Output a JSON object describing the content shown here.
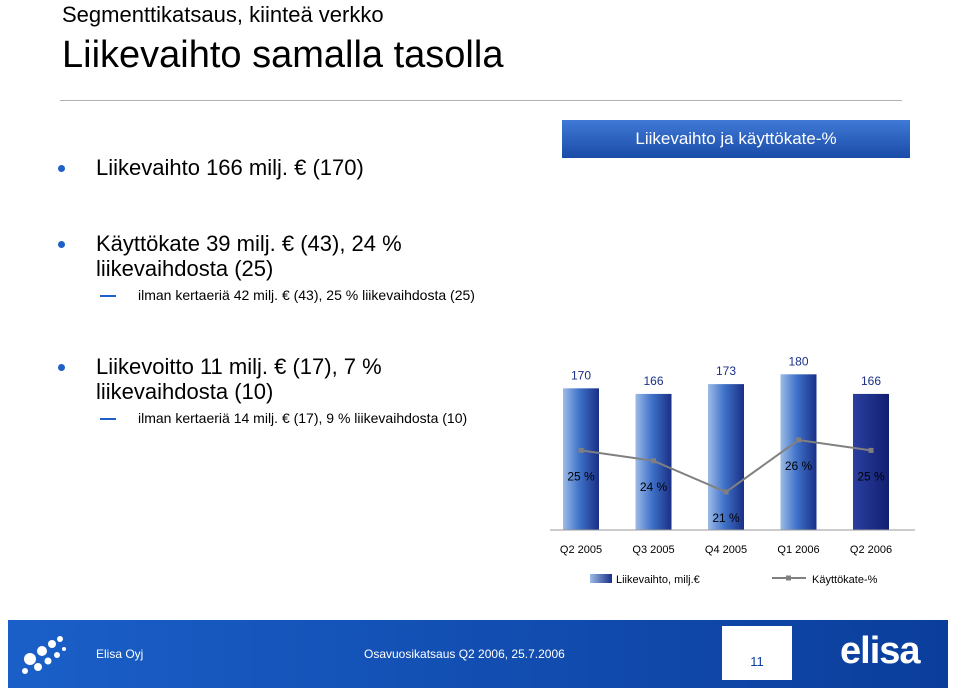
{
  "slide": {
    "subtitle": "Segmenttikatsaus, kiinteä verkko",
    "title": "Liikevaihto samalla tasolla"
  },
  "bullets": [
    {
      "lines": [
        "Liikevaihto 166 milj. € (170)"
      ]
    },
    {
      "lines": [
        "Käyttökate 39 milj. € (43), 24 %",
        "liikevaihdosta (25)"
      ],
      "sub": "ilman kertaeriä 42 milj. € (43), 25 % liikevaihdosta (25)"
    },
    {
      "lines": [
        "Liikevoitto 11 milj. € (17), 7 %",
        "liikevaihdosta (10)"
      ],
      "sub": "ilman kertaeriä 14 milj. € (17), 9 % liikevaihdosta (10)"
    }
  ],
  "chart_header": "Liikevaihto ja käyttökate-%",
  "chart_data": {
    "type": "bar",
    "categories": [
      "Q2 2005",
      "Q3 2005",
      "Q4 2005",
      "Q1 2006",
      "Q2 2006"
    ],
    "series": [
      {
        "name": "Liikevaihto, milj.€",
        "type": "bar",
        "values": [
          170,
          166,
          173,
          180,
          166
        ],
        "labels": [
          "170",
          "166",
          "173",
          "180",
          "166"
        ]
      },
      {
        "name": "Käyttökate-%",
        "type": "line",
        "values": [
          25,
          24,
          21,
          26,
          25
        ],
        "labels": [
          "25 %",
          "24 %",
          "21 %",
          "26 %",
          "25 %"
        ]
      }
    ],
    "bar_colors": {
      "light": "#9dbbe6",
      "mid": "#3f72c9",
      "dark": "#1a2f86",
      "last_bar": "#1c2a8c"
    },
    "line_color": "#808080",
    "grid": false,
    "legend_position": "bottom"
  },
  "footer": {
    "company": "Elisa Oyj",
    "report": "Osavuosikatsaus Q2 2006, 25.7.2006",
    "page": "11",
    "brand": "elisa"
  }
}
